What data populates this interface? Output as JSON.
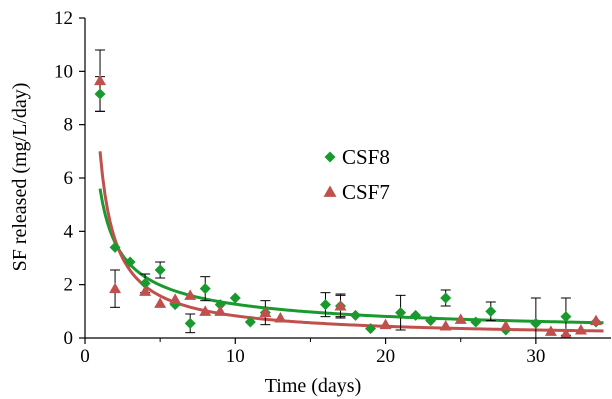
{
  "chart_data": {
    "type": "scatter",
    "xlabel": "Time (days)",
    "ylabel": "SF released (mg/L/day)",
    "xlim": [
      0,
      35
    ],
    "ylim": [
      0,
      12
    ],
    "xticks": [
      0,
      10,
      20,
      30
    ],
    "yticks": [
      0,
      2,
      4,
      6,
      8,
      10,
      12
    ],
    "grid": false,
    "legend": "center",
    "series": [
      {
        "name": "CSF8",
        "marker": "diamond",
        "color": "#1a9a2e",
        "points": [
          {
            "x": 1,
            "y": 9.15,
            "err": 0.65
          },
          {
            "x": 2,
            "y": 3.4,
            "err": 0.0
          },
          {
            "x": 3,
            "y": 2.85,
            "err": 0.0
          },
          {
            "x": 4,
            "y": 2.05,
            "err": 0.35
          },
          {
            "x": 5,
            "y": 2.55,
            "err": 0.3
          },
          {
            "x": 6,
            "y": 1.25,
            "err": 0.0
          },
          {
            "x": 7,
            "y": 0.55,
            "err": 0.35
          },
          {
            "x": 8,
            "y": 1.85,
            "err": 0.45
          },
          {
            "x": 9,
            "y": 1.25,
            "err": 0.0
          },
          {
            "x": 10,
            "y": 1.5,
            "err": 0.0
          },
          {
            "x": 11,
            "y": 0.6,
            "err": 0.0
          },
          {
            "x": 12,
            "y": 0.95,
            "err": 0.45
          },
          {
            "x": 16,
            "y": 1.25,
            "err": 0.45
          },
          {
            "x": 17,
            "y": 1.2,
            "err": 0.45
          },
          {
            "x": 18,
            "y": 0.85,
            "err": 0.0
          },
          {
            "x": 19,
            "y": 0.35,
            "err": 0.0
          },
          {
            "x": 21,
            "y": 0.95,
            "err": 0.65
          },
          {
            "x": 22,
            "y": 0.85,
            "err": 0.0
          },
          {
            "x": 23,
            "y": 0.65,
            "err": 0.0
          },
          {
            "x": 24,
            "y": 1.5,
            "err": 0.3
          },
          {
            "x": 26,
            "y": 0.6,
            "err": 0.0
          },
          {
            "x": 27,
            "y": 1.0,
            "err": 0.35
          },
          {
            "x": 28,
            "y": 0.3,
            "err": 0.0
          },
          {
            "x": 30,
            "y": 0.55,
            "err": 0.95
          },
          {
            "x": 32,
            "y": 0.8,
            "err": 0.7
          },
          {
            "x": 34,
            "y": 0.6,
            "err": 0.0
          }
        ],
        "fit": {
          "a": 5.6,
          "b": -0.645,
          "x_range": [
            1,
            34.5
          ]
        }
      },
      {
        "name": "CSF7",
        "marker": "triangle",
        "color": "#c0504d",
        "points": [
          {
            "x": 1,
            "y": 9.65,
            "err": 1.15
          },
          {
            "x": 2,
            "y": 1.85,
            "err": 0.7
          },
          {
            "x": 4,
            "y": 1.75,
            "err": 0.0
          },
          {
            "x": 5,
            "y": 1.3,
            "err": 0.0
          },
          {
            "x": 6,
            "y": 1.45,
            "err": 0.0
          },
          {
            "x": 7,
            "y": 1.6,
            "err": 0.0
          },
          {
            "x": 8,
            "y": 1.0,
            "err": 0.0
          },
          {
            "x": 9,
            "y": 1.0,
            "err": 0.0
          },
          {
            "x": 12,
            "y": 0.95,
            "err": 0.0
          },
          {
            "x": 13,
            "y": 0.75,
            "err": 0.0
          },
          {
            "x": 17,
            "y": 1.2,
            "err": 0.4
          },
          {
            "x": 20,
            "y": 0.5,
            "err": 0.0
          },
          {
            "x": 24,
            "y": 0.45,
            "err": 0.0
          },
          {
            "x": 25,
            "y": 0.7,
            "err": 0.0
          },
          {
            "x": 28,
            "y": 0.45,
            "err": 0.0
          },
          {
            "x": 31,
            "y": 0.25,
            "err": 0.0
          },
          {
            "x": 32,
            "y": 0.15,
            "err": 0.0
          },
          {
            "x": 33,
            "y": 0.3,
            "err": 0.0
          },
          {
            "x": 34,
            "y": 0.65,
            "err": 0.0
          }
        ],
        "fit": {
          "a": 7.0,
          "b": -0.925,
          "x_range": [
            1,
            34.5
          ]
        }
      }
    ]
  }
}
